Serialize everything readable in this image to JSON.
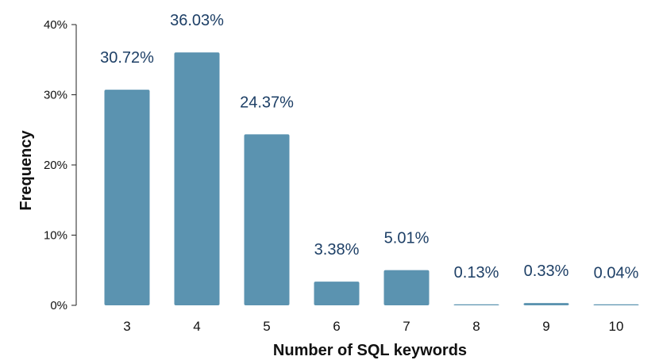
{
  "chart_data": {
    "type": "bar",
    "title": "",
    "xlabel": "Number of SQL keywords",
    "ylabel": "Frequency",
    "categories": [
      "3",
      "4",
      "5",
      "6",
      "7",
      "8",
      "9",
      "10"
    ],
    "values": [
      30.72,
      36.03,
      24.37,
      3.38,
      5.01,
      0.13,
      0.33,
      0.04
    ],
    "value_labels": [
      "30.72%",
      "36.03%",
      "24.37%",
      "3.38%",
      "5.01%",
      "0.13%",
      "0.33%",
      "0.04%"
    ],
    "y_ticks": [
      0,
      10,
      20,
      30,
      40
    ],
    "y_tick_labels": [
      "0%",
      "10%",
      "20%",
      "30%",
      "40%"
    ],
    "ylim": [
      0,
      40
    ],
    "grid": false,
    "legend": "none",
    "bar_color": "#5b93b0",
    "label_color": "#1d3f66"
  }
}
